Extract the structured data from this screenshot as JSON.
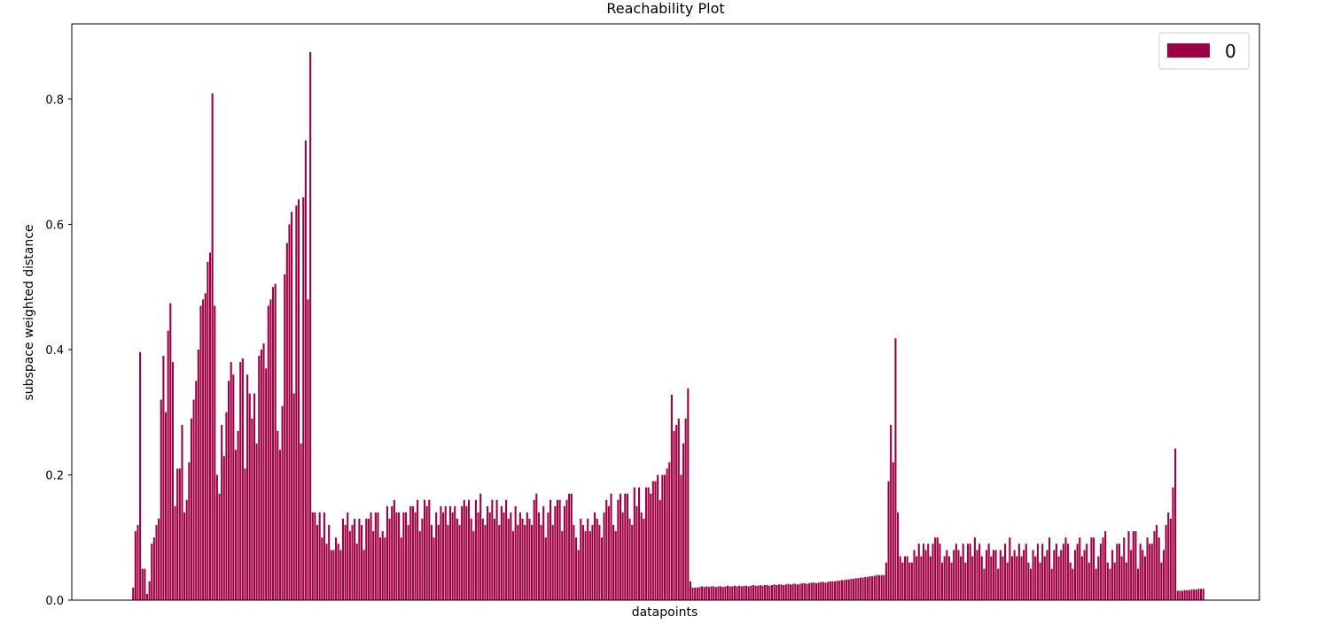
{
  "chart_data": {
    "type": "bar",
    "title": "Reachability Plot",
    "xlabel": "datapoints",
    "ylabel": "subspace weighted distance",
    "ylim": [
      0,
      0.92
    ],
    "yticks": [
      0.0,
      0.2,
      0.4,
      0.6,
      0.8
    ],
    "ytick_labels": [
      "0.0",
      "0.2",
      "0.4",
      "0.6",
      "0.8"
    ],
    "legend_position": "top-right",
    "grid": false,
    "series": [
      {
        "name": "0",
        "color": "#9e0142",
        "values": [
          0.0,
          0.0,
          0.0,
          0.02,
          0.11,
          0.12,
          0.396,
          0.05,
          0.05,
          0.01,
          0.03,
          0.09,
          0.1,
          0.12,
          0.13,
          0.32,
          0.39,
          0.3,
          0.43,
          0.474,
          0.38,
          0.15,
          0.21,
          0.21,
          0.28,
          0.14,
          0.16,
          0.22,
          0.29,
          0.32,
          0.35,
          0.4,
          0.47,
          0.48,
          0.49,
          0.54,
          0.555,
          0.809,
          0.47,
          0.2,
          0.17,
          0.28,
          0.23,
          0.3,
          0.35,
          0.38,
          0.36,
          0.24,
          0.27,
          0.38,
          0.386,
          0.21,
          0.36,
          0.33,
          0.29,
          0.33,
          0.25,
          0.39,
          0.4,
          0.41,
          0.37,
          0.47,
          0.48,
          0.5,
          0.505,
          0.27,
          0.24,
          0.31,
          0.52,
          0.57,
          0.6,
          0.62,
          0.33,
          0.63,
          0.64,
          0.25,
          0.643,
          0.734,
          0.48,
          0.875,
          0.14,
          0.14,
          0.12,
          0.14,
          0.1,
          0.14,
          0.09,
          0.12,
          0.08,
          0.08,
          0.1,
          0.09,
          0.08,
          0.13,
          0.12,
          0.14,
          0.11,
          0.12,
          0.13,
          0.09,
          0.13,
          0.12,
          0.08,
          0.13,
          0.13,
          0.14,
          0.11,
          0.14,
          0.14,
          0.1,
          0.11,
          0.1,
          0.15,
          0.13,
          0.15,
          0.16,
          0.14,
          0.14,
          0.1,
          0.14,
          0.14,
          0.12,
          0.15,
          0.15,
          0.14,
          0.16,
          0.11,
          0.13,
          0.16,
          0.15,
          0.16,
          0.12,
          0.1,
          0.14,
          0.12,
          0.15,
          0.14,
          0.15,
          0.12,
          0.15,
          0.14,
          0.15,
          0.13,
          0.12,
          0.15,
          0.16,
          0.15,
          0.16,
          0.13,
          0.11,
          0.16,
          0.14,
          0.17,
          0.13,
          0.12,
          0.15,
          0.14,
          0.16,
          0.13,
          0.16,
          0.12,
          0.15,
          0.14,
          0.16,
          0.13,
          0.14,
          0.11,
          0.15,
          0.12,
          0.14,
          0.13,
          0.12,
          0.14,
          0.13,
          0.12,
          0.16,
          0.17,
          0.14,
          0.12,
          0.15,
          0.1,
          0.14,
          0.16,
          0.12,
          0.15,
          0.16,
          0.16,
          0.11,
          0.15,
          0.16,
          0.17,
          0.17,
          0.12,
          0.1,
          0.08,
          0.13,
          0.12,
          0.11,
          0.13,
          0.11,
          0.12,
          0.14,
          0.13,
          0.12,
          0.1,
          0.14,
          0.16,
          0.15,
          0.17,
          0.12,
          0.11,
          0.16,
          0.17,
          0.14,
          0.17,
          0.17,
          0.13,
          0.12,
          0.18,
          0.15,
          0.18,
          0.14,
          0.13,
          0.18,
          0.18,
          0.17,
          0.19,
          0.19,
          0.2,
          0.16,
          0.2,
          0.2,
          0.21,
          0.22,
          0.328,
          0.27,
          0.28,
          0.29,
          0.2,
          0.25,
          0.29,
          0.338,
          0.03,
          0.02,
          0.02,
          0.02,
          0.021,
          0.022,
          0.021,
          0.022,
          0.021,
          0.022,
          0.022,
          0.021,
          0.022,
          0.022,
          0.021,
          0.022,
          0.023,
          0.022,
          0.022,
          0.023,
          0.022,
          0.023,
          0.022,
          0.023,
          0.023,
          0.022,
          0.023,
          0.024,
          0.023,
          0.023,
          0.024,
          0.023,
          0.024,
          0.024,
          0.023,
          0.024,
          0.025,
          0.024,
          0.025,
          0.025,
          0.024,
          0.025,
          0.026,
          0.025,
          0.026,
          0.026,
          0.025,
          0.026,
          0.027,
          0.027,
          0.026,
          0.027,
          0.028,
          0.028,
          0.027,
          0.028,
          0.029,
          0.029,
          0.028,
          0.029,
          0.03,
          0.03,
          0.03,
          0.031,
          0.031,
          0.032,
          0.032,
          0.033,
          0.033,
          0.034,
          0.034,
          0.035,
          0.035,
          0.036,
          0.036,
          0.037,
          0.037,
          0.038,
          0.038,
          0.039,
          0.04,
          0.04,
          0.04,
          0.04,
          0.06,
          0.19,
          0.28,
          0.22,
          0.418,
          0.14,
          0.07,
          0.06,
          0.07,
          0.07,
          0.06,
          0.06,
          0.08,
          0.07,
          0.09,
          0.07,
          0.09,
          0.08,
          0.09,
          0.07,
          0.09,
          0.1,
          0.1,
          0.09,
          0.06,
          0.07,
          0.08,
          0.07,
          0.06,
          0.08,
          0.09,
          0.08,
          0.07,
          0.09,
          0.06,
          0.09,
          0.09,
          0.07,
          0.1,
          0.08,
          0.09,
          0.07,
          0.05,
          0.08,
          0.09,
          0.07,
          0.08,
          0.08,
          0.05,
          0.08,
          0.07,
          0.09,
          0.06,
          0.1,
          0.07,
          0.08,
          0.07,
          0.09,
          0.07,
          0.08,
          0.09,
          0.06,
          0.05,
          0.08,
          0.07,
          0.09,
          0.06,
          0.09,
          0.07,
          0.08,
          0.1,
          0.05,
          0.08,
          0.09,
          0.07,
          0.08,
          0.09,
          0.1,
          0.09,
          0.06,
          0.05,
          0.08,
          0.09,
          0.1,
          0.07,
          0.08,
          0.09,
          0.06,
          0.1,
          0.1,
          0.05,
          0.07,
          0.09,
          0.1,
          0.11,
          0.06,
          0.05,
          0.08,
          0.06,
          0.09,
          0.09,
          0.07,
          0.1,
          0.06,
          0.11,
          0.08,
          0.11,
          0.11,
          0.05,
          0.09,
          0.08,
          0.07,
          0.1,
          0.09,
          0.09,
          0.11,
          0.12,
          0.1,
          0.06,
          0.08,
          0.12,
          0.14,
          0.13,
          0.18,
          0.242,
          0.015,
          0.015,
          0.015,
          0.016,
          0.016,
          0.016,
          0.017,
          0.017,
          0.017,
          0.018,
          0.018,
          0.018
        ]
      }
    ]
  }
}
